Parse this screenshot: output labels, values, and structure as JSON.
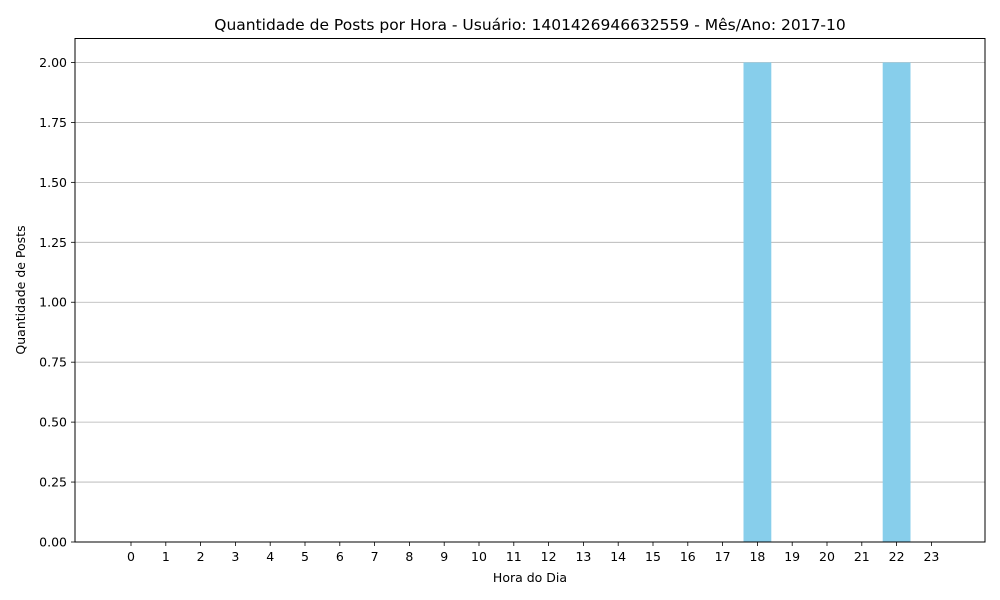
{
  "chart_data": {
    "type": "bar",
    "title": "Quantidade de Posts por Hora - Usuário: 1401426946632559 - Mês/Ano: 2017-10",
    "xlabel": "Hora do Dia",
    "ylabel": "Quantidade de Posts",
    "categories": [
      "0",
      "1",
      "2",
      "3",
      "4",
      "5",
      "6",
      "7",
      "8",
      "9",
      "10",
      "11",
      "12",
      "13",
      "14",
      "15",
      "16",
      "17",
      "18",
      "19",
      "20",
      "21",
      "22",
      "23"
    ],
    "values": [
      0,
      0,
      0,
      0,
      0,
      0,
      0,
      0,
      0,
      0,
      0,
      0,
      0,
      0,
      0,
      0,
      0,
      0,
      2,
      0,
      0,
      0,
      2,
      0
    ],
    "ylim": [
      0,
      2.1
    ],
    "yticks": [
      "0.00",
      "0.25",
      "0.50",
      "0.75",
      "1.00",
      "1.25",
      "1.50",
      "1.75",
      "2.00"
    ],
    "grid": "horizontal",
    "bar_color": "#87CEEB"
  }
}
